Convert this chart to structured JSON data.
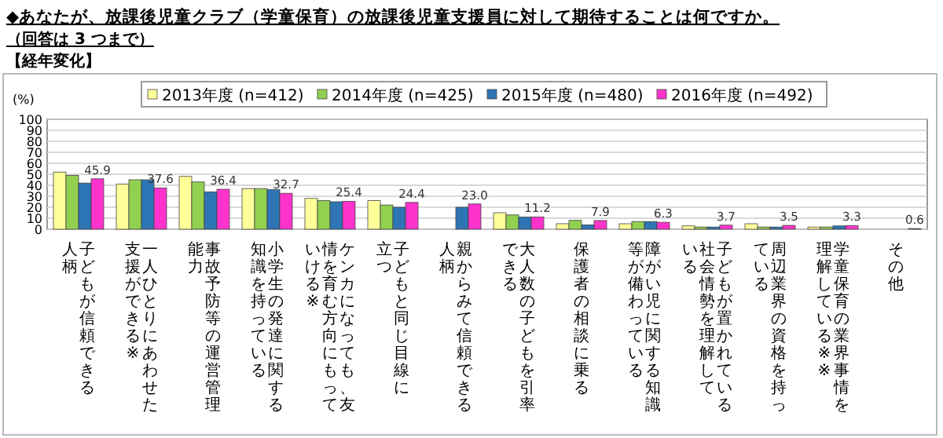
{
  "chart_data": {
    "type": "bar",
    "title": "◆あなたが、放課後児童クラブ（学童保育）の放課後児童支援員に対して期待することは何ですか。",
    "subtitle": "（回答は 3 つまで）",
    "annotations": [
      "【経年変化】"
    ],
    "ylabel": "(%)",
    "categories": [
      "子どもが信頼できる人柄",
      "一人ひとりにあわせた支援ができる※",
      "事故予防等の運営管理能力",
      "小学生の発達に関する知識を持っている",
      "ケンカになっても、友情を育む方向にもっていける※",
      "子どもと同じ目線に立つ",
      "親からみて信頼できる人柄",
      "大人数の子どもを引率できる",
      "保護者の相談に乗る",
      "障がい児に関する知識等が備わっている",
      "子どもが置かれている社会情勢を理解している",
      "周辺業界の資格を持っている",
      "学童保育の業界事情を理解している※※",
      "その他"
    ],
    "series": [
      {
        "name": "2013年度 (n=412)",
        "color": "#ffff99",
        "values": [
          52,
          41,
          48,
          37,
          28,
          26,
          null,
          15,
          5,
          5,
          3,
          5,
          2,
          null
        ]
      },
      {
        "name": "2014年度 (n=425)",
        "color": "#92d050",
        "values": [
          49,
          45,
          43,
          37,
          26,
          22,
          null,
          13,
          8,
          7,
          2,
          2,
          2,
          null
        ]
      },
      {
        "name": "2015年度 (n=480)",
        "color": "#2e75b6",
        "values": [
          42,
          45,
          34,
          36,
          25,
          20,
          20,
          11,
          4,
          7,
          2,
          2,
          3,
          null
        ]
      },
      {
        "name": "2016年度 (n=492)",
        "color": "#ff33cc",
        "values": [
          45.9,
          37.6,
          36.4,
          32.7,
          25.4,
          24.4,
          23.0,
          11.2,
          7.9,
          6.3,
          3.7,
          3.5,
          3.3,
          0.6
        ],
        "value_labels": [
          "45.9",
          "37.6",
          "36.4",
          "32.7",
          "25.4",
          "24.4",
          "23.0",
          "11.2",
          "7.9",
          "6.3",
          "3.7",
          "3.5",
          "3.3",
          "0.6"
        ]
      }
    ],
    "ylim": [
      0,
      100
    ],
    "yticks": [
      0,
      10,
      20,
      30,
      40,
      50,
      60,
      70,
      80,
      90,
      100
    ],
    "grid": "y",
    "legend": "top"
  }
}
